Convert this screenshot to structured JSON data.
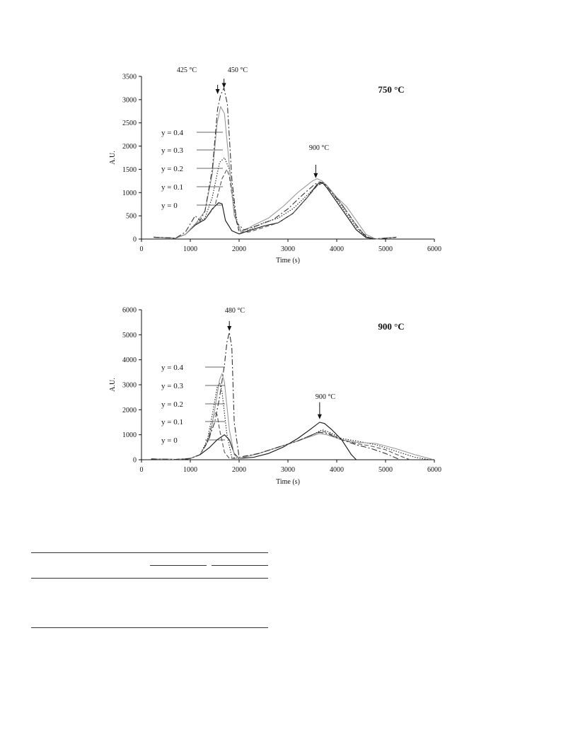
{
  "chart_data": [
    {
      "type": "line",
      "title": "750 °C",
      "xlabel": "Time (s)",
      "ylabel": "A.U.",
      "xlim": [
        0,
        6000
      ],
      "ylim": [
        0,
        3500
      ],
      "xticks": [
        0,
        1000,
        2000,
        3000,
        4000,
        5000,
        6000
      ],
      "yticks": [
        0,
        500,
        1000,
        1500,
        2000,
        2500,
        3000,
        3500
      ],
      "grid": false,
      "legend_labels": [
        "y = 0.4",
        "y = 0.3",
        "y = 0.2",
        "y = 0.1",
        "y = 0"
      ],
      "annotations": [
        {
          "text": "425 °C",
          "x": 1560,
          "y": 3120
        },
        {
          "text": "450 °C",
          "x": 1690,
          "y": 3250
        },
        {
          "text": "900 °C",
          "x": 3570,
          "y": 1240
        }
      ],
      "series": [
        {
          "name": "y = 0",
          "color": "#111111",
          "dash": "",
          "x": [
            250,
            700,
            900,
            1100,
            1300,
            1450,
            1580,
            1650,
            1720,
            1850,
            2000,
            2200,
            2500,
            2800,
            3100,
            3400,
            3600,
            3700,
            3800,
            4000,
            4200,
            4400,
            4600,
            4800,
            5000,
            5220
          ],
          "y": [
            40,
            20,
            100,
            300,
            420,
            650,
            780,
            760,
            400,
            180,
            110,
            180,
            280,
            350,
            550,
            900,
            1180,
            1220,
            1100,
            800,
            500,
            200,
            30,
            0,
            20,
            40
          ]
        },
        {
          "name": "y = 0.1",
          "color": "#555555",
          "dash": "6,3",
          "x": [
            250,
            700,
            900,
            1100,
            1300,
            1500,
            1650,
            1750,
            1800,
            1900,
            2000,
            2200,
            2500,
            2800,
            3100,
            3400,
            3600,
            3700,
            3800,
            4000,
            4200,
            4400,
            4600,
            4800,
            5000,
            5220
          ],
          "y": [
            40,
            20,
            100,
            320,
            420,
            700,
            1300,
            1500,
            1350,
            600,
            150,
            150,
            250,
            350,
            550,
            900,
            1150,
            1200,
            1150,
            900,
            600,
            300,
            50,
            0,
            20,
            40
          ]
        },
        {
          "name": "y = 0.2",
          "color": "#222222",
          "dash": "1.5,2",
          "x": [
            250,
            700,
            900,
            1100,
            1300,
            1450,
            1600,
            1700,
            1800,
            1900,
            2000,
            2200,
            2500,
            2800,
            3100,
            3400,
            3600,
            3700,
            3800,
            4000,
            4200,
            4400,
            4600,
            4800,
            5000,
            5220
          ],
          "y": [
            40,
            20,
            100,
            330,
            450,
            900,
            1650,
            1750,
            1500,
            700,
            180,
            200,
            350,
            450,
            650,
            950,
            1150,
            1200,
            1150,
            850,
            550,
            250,
            40,
            0,
            20,
            40
          ]
        },
        {
          "name": "y = 0.3",
          "color": "#999999",
          "dash": "",
          "x": [
            250,
            700,
            900,
            1100,
            1300,
            1450,
            1550,
            1620,
            1700,
            1780,
            1900,
            2050,
            2300,
            2600,
            2900,
            3200,
            3500,
            3600,
            3700,
            3800,
            4000,
            4200,
            4400,
            4600,
            4800,
            5000,
            5220
          ],
          "y": [
            40,
            20,
            100,
            320,
            600,
            1400,
            2500,
            2850,
            2700,
            1800,
            500,
            150,
            300,
            450,
            700,
            1000,
            1250,
            1300,
            1250,
            1150,
            900,
            700,
            400,
            100,
            0,
            20,
            40
          ]
        },
        {
          "name": "y = 0.4",
          "color": "#333333",
          "dash": "8,3,2,3",
          "x": [
            250,
            700,
            900,
            1100,
            1200,
            1300,
            1450,
            1560,
            1620,
            1690,
            1760,
            1850,
            1950,
            2100,
            2400,
            2700,
            3000,
            3300,
            3550,
            3650,
            3750,
            3900,
            4100,
            4300,
            4500,
            4700,
            5000,
            5220
          ],
          "y": [
            40,
            20,
            150,
            500,
            400,
            600,
            1500,
            2800,
            3100,
            3250,
            2900,
            1300,
            350,
            200,
            300,
            420,
            650,
            950,
            1180,
            1230,
            1200,
            1000,
            750,
            450,
            150,
            0,
            20,
            40
          ]
        }
      ]
    },
    {
      "type": "line",
      "title": "900 °C",
      "xlabel": "Time (s)",
      "ylabel": "A.U.",
      "xlim": [
        0,
        6000
      ],
      "ylim": [
        0,
        6000
      ],
      "xticks": [
        0,
        1000,
        2000,
        3000,
        4000,
        5000,
        6000
      ],
      "yticks": [
        0,
        1000,
        2000,
        3000,
        4000,
        5000,
        6000
      ],
      "grid": false,
      "legend_labels": [
        "y = 0.4",
        "y = 0.3",
        "y = 0.2",
        "y = 0.1",
        "y = 0"
      ],
      "annotations": [
        {
          "text": "480 °C",
          "x": 1800,
          "y": 5100
        },
        {
          "text": "900 °C",
          "x": 3650,
          "y": 1500
        }
      ],
      "series": [
        {
          "name": "y = 0",
          "color": "#111111",
          "dash": "",
          "x": [
            200,
            700,
            900,
            1000,
            1200,
            1400,
            1550,
            1700,
            1800,
            1900,
            2000,
            2300,
            2600,
            2900,
            3200,
            3450,
            3650,
            3750,
            3900,
            4100,
            4300,
            4400,
            5200
          ],
          "y": [
            30,
            10,
            20,
            50,
            200,
            500,
            800,
            1000,
            800,
            250,
            50,
            100,
            250,
            500,
            850,
            1200,
            1500,
            1450,
            1200,
            800,
            200,
            0,
            0
          ]
        },
        {
          "name": "y = 0.1",
          "color": "#555555",
          "dash": "6,3",
          "x": [
            200,
            700,
            1000,
            1200,
            1350,
            1450,
            1500,
            1550,
            1600,
            1700,
            1800,
            2000,
            2400,
            2800,
            3200,
            3500,
            3700,
            3850,
            4100,
            4400,
            4700,
            5000,
            5300,
            5500
          ],
          "y": [
            30,
            10,
            50,
            200,
            700,
            1500,
            1900,
            1800,
            1200,
            300,
            50,
            50,
            250,
            500,
            750,
            1000,
            1150,
            1050,
            800,
            650,
            550,
            400,
            150,
            0
          ]
        },
        {
          "name": "y = 0.2",
          "color": "#222222",
          "dash": "1.5,2",
          "x": [
            200,
            700,
            1000,
            1200,
            1350,
            1450,
            1550,
            1600,
            1650,
            1750,
            1850,
            2000,
            2400,
            2800,
            3200,
            3500,
            3700,
            3850,
            4100,
            4400,
            4800,
            5200,
            5600,
            5900
          ],
          "y": [
            30,
            10,
            50,
            200,
            800,
            1800,
            2900,
            3100,
            2700,
            1000,
            100,
            50,
            250,
            500,
            750,
            1000,
            1200,
            1100,
            850,
            750,
            600,
            350,
            100,
            0
          ]
        },
        {
          "name": "y = 0.3",
          "color": "#999999",
          "dash": "",
          "x": [
            200,
            700,
            1000,
            1200,
            1400,
            1500,
            1600,
            1650,
            1700,
            1800,
            1900,
            2000,
            2400,
            2800,
            3200,
            3500,
            3650,
            3800,
            4100,
            4400,
            4800,
            5200,
            5600,
            5950
          ],
          "y": [
            30,
            10,
            50,
            200,
            900,
            2000,
            3200,
            3450,
            3100,
            1200,
            200,
            50,
            250,
            500,
            750,
            950,
            1050,
            1000,
            800,
            700,
            650,
            450,
            200,
            20
          ]
        },
        {
          "name": "y = 0.4",
          "color": "#333333",
          "dash": "8,3,2,3",
          "x": [
            200,
            700,
            1000,
            1200,
            1350,
            1500,
            1600,
            1700,
            1750,
            1800,
            1850,
            1900,
            2000,
            2400,
            2800,
            3200,
            3500,
            3650,
            3800,
            4100,
            4400,
            4700,
            5000,
            5300
          ],
          "y": [
            30,
            10,
            50,
            200,
            700,
            1500,
            2500,
            3800,
            4700,
            5100,
            4500,
            1500,
            100,
            250,
            500,
            750,
            1000,
            1100,
            1050,
            800,
            600,
            450,
            250,
            0
          ]
        }
      ]
    }
  ]
}
